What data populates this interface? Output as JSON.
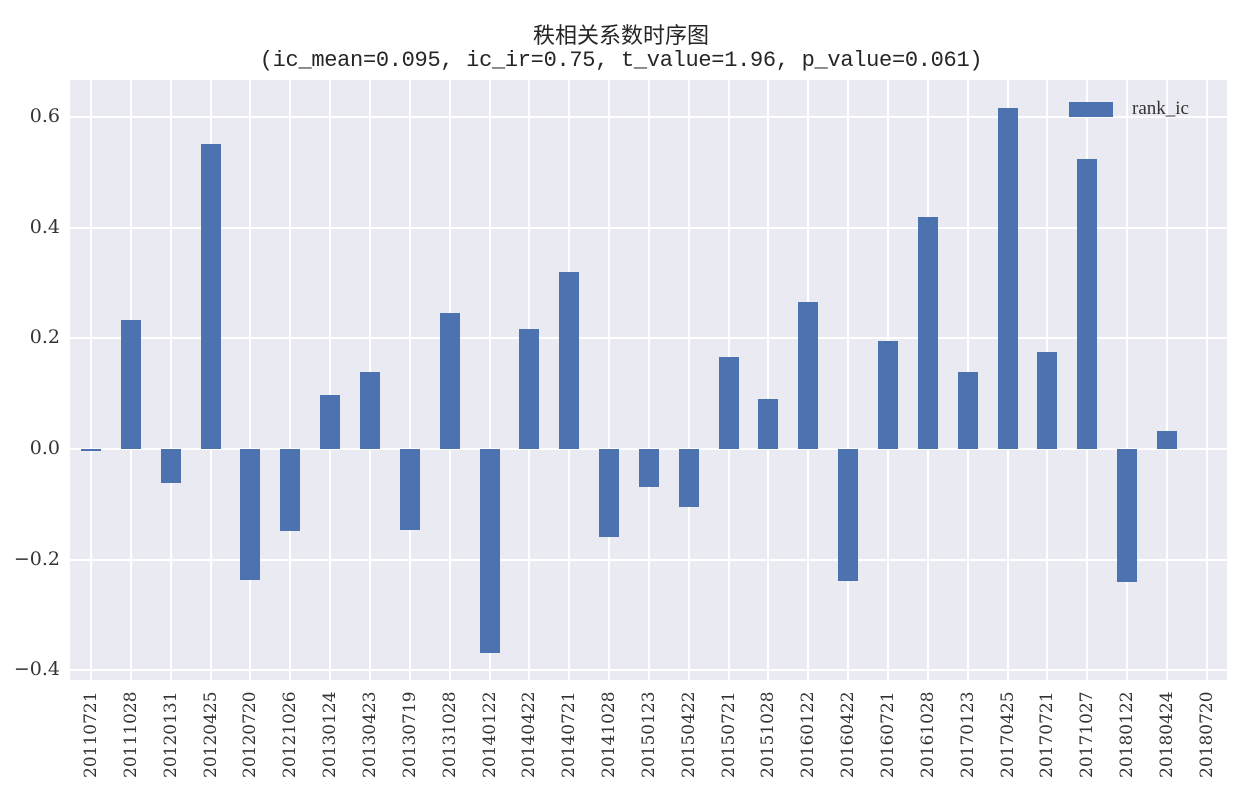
{
  "chart_data": {
    "type": "bar",
    "title": "秩相关系数时序图",
    "subtitle": "(ic_mean=0.095, ic_ir=0.75, t_value=1.96, p_value=0.061)",
    "xlabel": "",
    "ylabel": "",
    "ylim": [
      -0.42,
      0.665
    ],
    "yticks": [
      0.6,
      0.4,
      0.2,
      0.0,
      -0.2,
      -0.4
    ],
    "ytick_labels": [
      "0.6",
      "0.4",
      "0.2",
      "0.0",
      "−0.2",
      "−0.4"
    ],
    "grid": true,
    "legend_position": "upper right",
    "categories": [
      "20110721",
      "20111028",
      "20120131",
      "20120425",
      "20120720",
      "20121026",
      "20130124",
      "20130423",
      "20130719",
      "20131028",
      "20140122",
      "20140422",
      "20140721",
      "20141028",
      "20150123",
      "20150422",
      "20150721",
      "20151028",
      "20160122",
      "20160422",
      "20160721",
      "20161028",
      "20170123",
      "20170425",
      "20170721",
      "20171027",
      "20180122",
      "20180424",
      "20180720"
    ],
    "series": [
      {
        "name": "rank_ic",
        "color": "#4C72B0",
        "values": [
          -0.003,
          0.233,
          -0.062,
          0.552,
          -0.237,
          -0.148,
          0.098,
          0.139,
          -0.146,
          0.246,
          -0.369,
          0.217,
          0.32,
          -0.159,
          -0.069,
          -0.105,
          0.166,
          0.09,
          0.266,
          -0.239,
          0.195,
          0.42,
          0.139,
          0.617,
          0.175,
          0.524,
          -0.241,
          0.033,
          null
        ]
      }
    ]
  },
  "legend": {
    "label": "rank_ic"
  },
  "colors": {
    "background": "#EAEAF2",
    "bar": "#4C72B0",
    "grid": "#FFFFFF"
  }
}
